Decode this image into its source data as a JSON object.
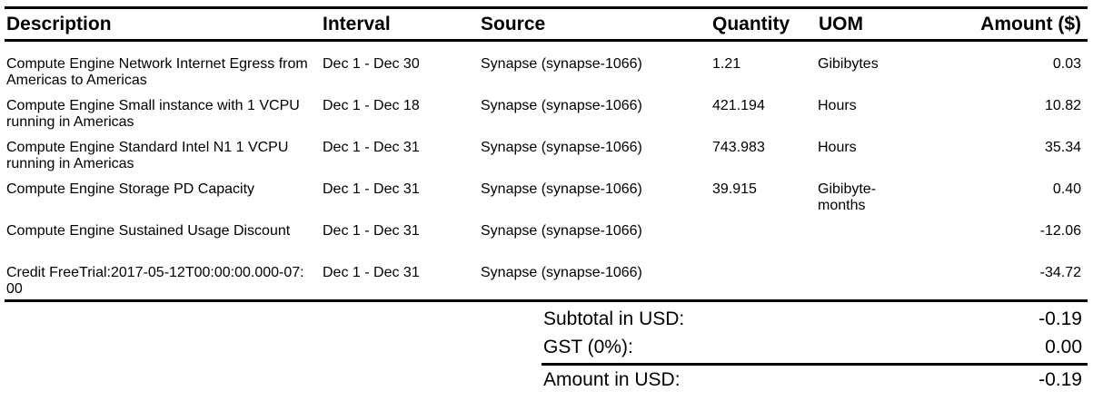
{
  "table": {
    "headers": {
      "description": "Description",
      "interval": "Interval",
      "source": "Source",
      "quantity": "Quantity",
      "uom": "UOM",
      "amount": "Amount ($)"
    },
    "rows": [
      {
        "description": "Compute Engine Network Internet Egress from Americas to Americas",
        "interval": "Dec 1 - Dec 30",
        "source": "Synapse (synapse-1066)",
        "quantity": "1.21",
        "uom": "Gibibytes",
        "amount": "0.03"
      },
      {
        "description": "Compute Engine Small instance with 1 VCPU running in Americas",
        "interval": "Dec 1 - Dec 18",
        "source": "Synapse (synapse-1066)",
        "quantity": "421.194",
        "uom": "Hours",
        "amount": "10.82"
      },
      {
        "description": "Compute Engine Standard Intel N1 1 VCPU running in Americas",
        "interval": "Dec 1 - Dec 31",
        "source": "Synapse (synapse-1066)",
        "quantity": "743.983",
        "uom": "Hours",
        "amount": "35.34"
      },
      {
        "description": "Compute Engine Storage PD Capacity",
        "interval": "Dec 1 - Dec 31",
        "source": "Synapse (synapse-1066)",
        "quantity": "39.915",
        "uom": "Gibibyte-months",
        "amount": "0.40"
      },
      {
        "description": "Compute Engine Sustained Usage Discount",
        "interval": "Dec 1 - Dec 31",
        "source": "Synapse (synapse-1066)",
        "quantity": "",
        "uom": "",
        "amount": "-12.06"
      },
      {
        "description": "Credit FreeTrial:2017-05-12T00:00:00.000-07:00",
        "interval": "Dec 1 - Dec 31",
        "source": "Synapse (synapse-1066)",
        "quantity": "",
        "uom": "",
        "amount": "-34.72"
      }
    ]
  },
  "totals": {
    "subtotal_label": "Subtotal in USD:",
    "subtotal_value": "-0.19",
    "gst_label": "GST (0%):",
    "gst_value": "0.00",
    "amount_label": "Amount in USD:",
    "amount_value": "-0.19"
  }
}
